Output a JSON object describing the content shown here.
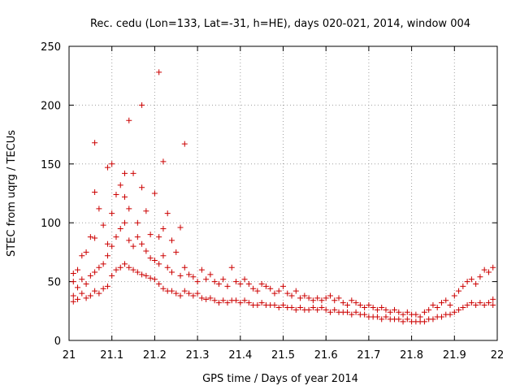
{
  "chart_data": {
    "type": "scatter",
    "title": "Rec. cedu (Lon=133, Lat=-31, h=HE), days 020-021, 2014, window 004",
    "xlabel": "GPS time / Days of year 2014",
    "ylabel": "STEC from uqrg / TECUs",
    "xlim": [
      21,
      22
    ],
    "ylim": [
      0,
      250
    ],
    "grid": true,
    "xticks": [
      "21",
      "21.1",
      "21.2",
      "21.3",
      "21.4",
      "21.5",
      "21.6",
      "21.7",
      "21.8",
      "21.9",
      "22"
    ],
    "yticks": [
      "0",
      "50",
      "100",
      "150",
      "200",
      "250"
    ],
    "marker": "+",
    "color": "#cc0000",
    "series": [
      {
        "name": "STEC",
        "x": [
          21.01,
          21.01,
          21.01,
          21.01,
          21.02,
          21.02,
          21.02,
          21.03,
          21.03,
          21.03,
          21.04,
          21.04,
          21.04,
          21.05,
          21.05,
          21.05,
          21.06,
          21.06,
          21.06,
          21.06,
          21.07,
          21.07,
          21.07,
          21.08,
          21.08,
          21.08,
          21.09,
          21.09,
          21.09,
          21.1,
          21.1,
          21.1,
          21.1,
          21.11,
          21.11,
          21.11,
          21.12,
          21.12,
          21.12,
          21.13,
          21.13,
          21.13,
          21.14,
          21.14,
          21.14,
          21.15,
          21.15,
          21.15,
          21.16,
          21.16,
          21.16,
          21.17,
          21.17,
          21.17,
          21.18,
          21.18,
          21.18,
          21.19,
          21.19,
          21.19,
          21.2,
          21.2,
          21.2,
          21.21,
          21.21,
          21.21,
          21.22,
          21.22,
          21.22,
          21.23,
          21.23,
          21.23,
          21.24,
          21.24,
          21.24,
          21.25,
          21.25,
          21.26,
          21.26,
          21.26,
          21.27,
          21.27,
          21.28,
          21.28,
          21.29,
          21.29,
          21.3,
          21.3,
          21.31,
          21.31,
          21.32,
          21.32,
          21.33,
          21.33,
          21.34,
          21.34,
          21.35,
          21.35,
          21.36,
          21.36,
          21.37,
          21.37,
          21.38,
          21.38,
          21.39,
          21.39,
          21.4,
          21.4,
          21.41,
          21.41,
          21.42,
          21.42,
          21.43,
          21.43,
          21.44,
          21.44,
          21.45,
          21.45,
          21.46,
          21.46,
          21.47,
          21.47,
          21.48,
          21.48,
          21.49,
          21.49,
          21.5,
          21.5,
          21.51,
          21.51,
          21.52,
          21.52,
          21.53,
          21.53,
          21.54,
          21.54,
          21.55,
          21.55,
          21.56,
          21.56,
          21.57,
          21.57,
          21.58,
          21.58,
          21.59,
          21.59,
          21.6,
          21.6,
          21.61,
          21.61,
          21.62,
          21.62,
          21.63,
          21.63,
          21.64,
          21.64,
          21.65,
          21.65,
          21.66,
          21.66,
          21.67,
          21.67,
          21.68,
          21.68,
          21.69,
          21.69,
          21.7,
          21.7,
          21.71,
          21.71,
          21.72,
          21.72,
          21.73,
          21.73,
          21.74,
          21.74,
          21.75,
          21.75,
          21.76,
          21.76,
          21.77,
          21.77,
          21.78,
          21.78,
          21.79,
          21.79,
          21.8,
          21.8,
          21.81,
          21.81,
          21.82,
          21.82,
          21.83,
          21.83,
          21.84,
          21.84,
          21.85,
          21.85,
          21.86,
          21.86,
          21.87,
          21.87,
          21.88,
          21.88,
          21.89,
          21.89,
          21.9,
          21.9,
          21.91,
          21.91,
          21.92,
          21.92,
          21.93,
          21.93,
          21.94,
          21.94,
          21.95,
          21.95,
          21.96,
          21.96,
          21.97,
          21.97,
          21.98,
          21.98,
          21.99,
          21.99,
          21.99,
          21.21,
          21.17,
          21.14,
          21.27,
          21.22,
          21.09,
          21.13,
          21.06
        ],
        "y": [
          33,
          38,
          50,
          57,
          35,
          45,
          60,
          40,
          52,
          72,
          36,
          48,
          75,
          38,
          55,
          88,
          42,
          58,
          87,
          126,
          40,
          62,
          112,
          44,
          65,
          98,
          46,
          72,
          82,
          55,
          80,
          108,
          150,
          60,
          88,
          124,
          62,
          95,
          132,
          65,
          100,
          122,
          62,
          85,
          112,
          60,
          80,
          142,
          58,
          88,
          100,
          56,
          82,
          130,
          55,
          76,
          110,
          53,
          70,
          90,
          52,
          68,
          125,
          48,
          65,
          88,
          44,
          72,
          95,
          42,
          62,
          108,
          42,
          58,
          85,
          40,
          75,
          38,
          55,
          96,
          42,
          62,
          40,
          56,
          38,
          54,
          40,
          50,
          36,
          60,
          35,
          52,
          36,
          56,
          34,
          50,
          32,
          48,
          34,
          52,
          32,
          46,
          34,
          62,
          34,
          50,
          32,
          48,
          34,
          52,
          32,
          48,
          30,
          44,
          30,
          42,
          32,
          48,
          30,
          46,
          30,
          44,
          30,
          40,
          28,
          42,
          30,
          46,
          28,
          40,
          28,
          38,
          26,
          42,
          28,
          36,
          26,
          38,
          26,
          36,
          28,
          34,
          26,
          36,
          28,
          34,
          26,
          36,
          24,
          38,
          26,
          34,
          24,
          36,
          24,
          32,
          24,
          30,
          22,
          34,
          24,
          32,
          22,
          30,
          22,
          28,
          20,
          30,
          20,
          28,
          20,
          26,
          18,
          28,
          20,
          26,
          18,
          24,
          18,
          26,
          18,
          24,
          16,
          22,
          18,
          24,
          16,
          22,
          16,
          22,
          16,
          20,
          16,
          24,
          18,
          26,
          18,
          30,
          20,
          28,
          20,
          32,
          22,
          34,
          22,
          30,
          24,
          38,
          26,
          42,
          28,
          46,
          30,
          50,
          32,
          52,
          30,
          48,
          32,
          54,
          30,
          60,
          32,
          58,
          30,
          62,
          35,
          228,
          200,
          187,
          167,
          152,
          147,
          142,
          168
        ]
      }
    ]
  }
}
